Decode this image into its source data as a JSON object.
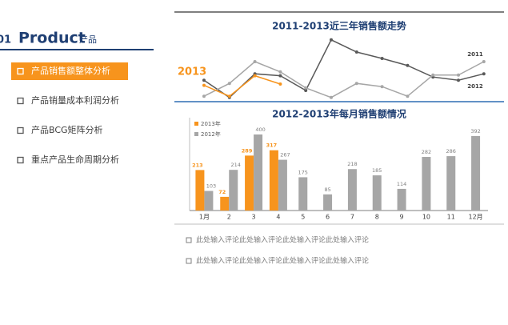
{
  "sidebar": {
    "number": "01",
    "title": "Product",
    "subtitle": "产品",
    "items": [
      "产品销售额整体分析",
      "产品销量成本利润分析",
      "产品BCG矩阵分析",
      "重点产品生命周期分析"
    ]
  },
  "chart_data": [
    {
      "type": "line",
      "title": "2011-2013近三年销售额走势",
      "ylim": [
        0,
        100
      ],
      "series": [
        {
          "name": "2011",
          "color": "#595959",
          "values": [
            31,
            4,
            41,
            38,
            15,
            94,
            75,
            65,
            54,
            36,
            31,
            41
          ]
        },
        {
          "name": "2012",
          "color": "#a6a6a6",
          "values": [
            6,
            26,
            60,
            44,
            19,
            4,
            26,
            21,
            6,
            39,
            39,
            60
          ]
        },
        {
          "name": "2013",
          "color": "#f7941d",
          "values": [
            23,
            6,
            38,
            25
          ]
        }
      ]
    },
    {
      "type": "bar",
      "title": "2012-2013年每月销售额情况",
      "ylim": [
        0,
        400
      ],
      "categories": [
        "1月",
        "2",
        "3",
        "4",
        "5",
        "6",
        "7",
        "8",
        "9",
        "10",
        "11",
        "12月"
      ],
      "series": [
        {
          "name": "2013年",
          "color": "#f7941d",
          "values": [
            213,
            72,
            289,
            317,
            null,
            null,
            null,
            null,
            null,
            null,
            null,
            null
          ]
        },
        {
          "name": "2012年",
          "color": "#a6a6a6",
          "values": [
            103,
            214,
            400,
            267,
            175,
            85,
            218,
            185,
            114,
            282,
            286,
            392
          ]
        }
      ]
    }
  ],
  "comments": [
    "此处输入评论此处输入评论此处输入评论此处输入评论",
    "此处输入评论此处输入评论此处输入评论此处输入评论"
  ]
}
